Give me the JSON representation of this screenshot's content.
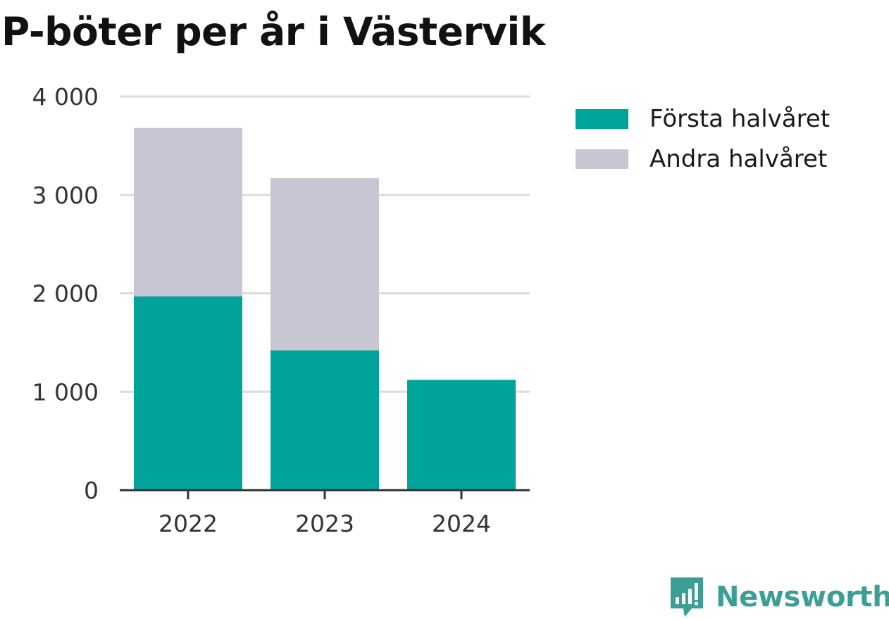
{
  "chart_data": {
    "type": "bar",
    "stacked": true,
    "title": "P-böter per år i Västervik",
    "xlabel": "",
    "ylabel": "",
    "categories": [
      "2022",
      "2023",
      "2024"
    ],
    "series": [
      {
        "name": "Första halvåret",
        "values": [
          1970,
          1420,
          1120
        ],
        "color": "#00a39a"
      },
      {
        "name": "Andra halvåret",
        "values": [
          1710,
          1750,
          0
        ],
        "color": "#c7c6d2"
      }
    ],
    "ylim": [
      0,
      4000
    ],
    "yticks": [
      0,
      1000,
      2000,
      3000,
      4000
    ],
    "ytick_labels": [
      "0",
      "1 000",
      "2 000",
      "3 000",
      "4 000"
    ],
    "grid": true,
    "legend_position": "right"
  },
  "brand": {
    "name": "Newsworthy",
    "icon": "newsworthy-logo-icon",
    "color": "#3b9e97"
  }
}
